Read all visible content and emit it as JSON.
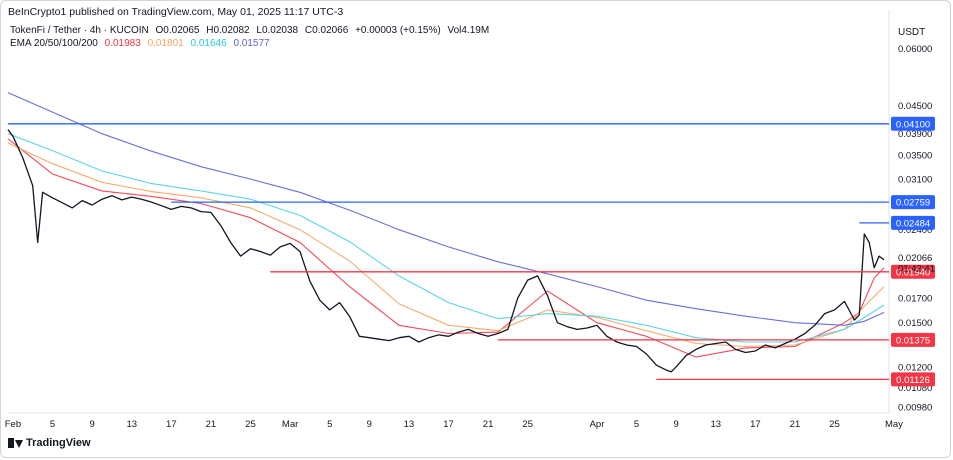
{
  "header": {
    "publisher": "BeInCrypto1 published on TradingView.com, May 01, 2025 11:17 UTC-3"
  },
  "symbol_info": {
    "pair": "TokenFi / Tether · 4h · KUCOIN",
    "open": "O0.02065",
    "high": "H0.02082",
    "low": "L0.02038",
    "close": "C0.02066",
    "change": "+0.00003 (+0.15%)",
    "volume": "Vol4.19M"
  },
  "ema_legend": {
    "label": "EMA 20/50/100/200",
    "values": [
      "0.01983",
      "0.01801",
      "0.01646",
      "0.01577"
    ],
    "colors": [
      "#f23645",
      "#f7a35c",
      "#4dd0e1",
      "#5c5fd6"
    ]
  },
  "currency": "USDT",
  "footer": {
    "brand": "TradingView"
  },
  "chart_data": {
    "type": "candlestick",
    "title": "TokenFi / Tether · 4h · KUCOIN",
    "y_scale": "log",
    "ylim": [
      0.0095,
      0.062
    ],
    "y_ticks": [
      "0.06000",
      "0.04500",
      "0.03900",
      "0.03500",
      "0.03100",
      "0.02400",
      "0.01700",
      "0.01500",
      "0.01200",
      "0.01080",
      "0.00980"
    ],
    "x_ticks": [
      "Feb",
      "5",
      "9",
      "13",
      "17",
      "21",
      "25",
      "Mar",
      "5",
      "9",
      "13",
      "17",
      "21",
      "25",
      "Apr",
      "5",
      "9",
      "13",
      "17",
      "21",
      "25",
      "May"
    ],
    "x_tick_days": [
      1,
      5,
      9,
      13,
      17,
      21,
      25,
      29,
      33,
      37,
      41,
      45,
      49,
      53,
      60,
      64,
      68,
      72,
      76,
      80,
      84,
      90
    ],
    "x_range_days": [
      0.5,
      89.5
    ],
    "price_series": {
      "name": "TokenFi / Tether",
      "x_days": [
        0.5,
        1,
        2,
        3,
        3.5,
        4,
        5,
        6,
        7,
        8,
        9,
        10,
        11,
        12,
        13,
        14,
        15,
        16,
        17,
        18,
        19,
        20,
        21,
        22,
        23,
        24,
        25,
        26,
        27,
        28,
        29,
        30,
        31,
        32,
        33,
        34,
        35,
        36,
        37,
        38,
        39,
        40,
        41,
        42,
        43,
        44,
        45,
        46,
        47,
        48,
        49,
        50,
        51,
        52,
        53,
        54,
        55,
        56,
        57,
        58,
        59,
        60,
        61,
        62,
        63,
        64,
        65,
        66,
        67,
        67.5,
        68,
        69,
        70,
        71,
        72,
        73,
        74,
        75,
        76,
        77,
        78,
        79,
        80,
        81,
        82,
        83,
        84,
        85,
        86,
        86.5,
        87,
        87.5,
        88,
        88.5,
        89
      ],
      "close": [
        0.0398,
        0.0385,
        0.0345,
        0.03,
        0.0225,
        0.029,
        0.0282,
        0.0275,
        0.0268,
        0.0278,
        0.0272,
        0.028,
        0.0285,
        0.0279,
        0.0283,
        0.028,
        0.0276,
        0.0271,
        0.0266,
        0.027,
        0.0268,
        0.0263,
        0.0262,
        0.0245,
        0.0225,
        0.021,
        0.0218,
        0.0215,
        0.0211,
        0.022,
        0.0224,
        0.0215,
        0.0185,
        0.0168,
        0.016,
        0.0166,
        0.0155,
        0.014,
        0.0139,
        0.0138,
        0.0137,
        0.0139,
        0.014,
        0.0136,
        0.0139,
        0.0141,
        0.014,
        0.0143,
        0.0145,
        0.0142,
        0.014,
        0.0142,
        0.0145,
        0.017,
        0.0186,
        0.019,
        0.0172,
        0.015,
        0.0147,
        0.0145,
        0.0146,
        0.0148,
        0.014,
        0.0136,
        0.0134,
        0.0133,
        0.0128,
        0.0121,
        0.0118,
        0.0117,
        0.012,
        0.0127,
        0.0131,
        0.0134,
        0.0135,
        0.0136,
        0.0131,
        0.0129,
        0.013,
        0.0134,
        0.0132,
        0.0135,
        0.0138,
        0.0142,
        0.0148,
        0.0157,
        0.016,
        0.0167,
        0.0152,
        0.0156,
        0.0235,
        0.0225,
        0.0198,
        0.021,
        0.0206
      ]
    },
    "ema_series": [
      {
        "name": "EMA 20",
        "color": "#f23645",
        "x_days": [
          0.5,
          5,
          10,
          15,
          20,
          25,
          30,
          35,
          40,
          45,
          50,
          55,
          60,
          65,
          70,
          75,
          80,
          85,
          86.5,
          88,
          89
        ],
        "values": [
          0.038,
          0.0318,
          0.0292,
          0.0284,
          0.0274,
          0.0255,
          0.0225,
          0.018,
          0.0148,
          0.0142,
          0.0143,
          0.0176,
          0.015,
          0.014,
          0.0126,
          0.0132,
          0.0133,
          0.015,
          0.0158,
          0.0188,
          0.0198
        ]
      },
      {
        "name": "EMA 50",
        "color": "#f7a35c",
        "x_days": [
          0.5,
          5,
          10,
          15,
          20,
          25,
          30,
          35,
          40,
          45,
          50,
          55,
          60,
          65,
          70,
          75,
          80,
          85,
          87,
          89
        ],
        "values": [
          0.0372,
          0.0335,
          0.0305,
          0.0291,
          0.0282,
          0.0268,
          0.024,
          0.0205,
          0.0165,
          0.0148,
          0.0144,
          0.016,
          0.0154,
          0.0144,
          0.0135,
          0.0133,
          0.0134,
          0.0145,
          0.0163,
          0.018
        ]
      },
      {
        "name": "EMA 100",
        "color": "#4dd0e1",
        "x_days": [
          0.5,
          5,
          10,
          15,
          20,
          25,
          30,
          35,
          40,
          45,
          50,
          55,
          60,
          65,
          70,
          75,
          80,
          85,
          87,
          89
        ],
        "values": [
          0.039,
          0.0358,
          0.0323,
          0.0303,
          0.0292,
          0.028,
          0.0258,
          0.0226,
          0.019,
          0.0166,
          0.0153,
          0.0157,
          0.0155,
          0.0148,
          0.0139,
          0.0136,
          0.0136,
          0.0145,
          0.0154,
          0.0164
        ]
      },
      {
        "name": "EMA 200",
        "color": "#5c5fd6",
        "x_days": [
          0.5,
          5,
          10,
          15,
          20,
          25,
          30,
          35,
          40,
          45,
          50,
          55,
          60,
          65,
          70,
          75,
          80,
          85,
          87,
          89
        ],
        "values": [
          0.048,
          0.0435,
          0.039,
          0.0357,
          0.033,
          0.031,
          0.029,
          0.0265,
          0.024,
          0.022,
          0.0204,
          0.0192,
          0.018,
          0.0168,
          0.0161,
          0.0155,
          0.015,
          0.0148,
          0.0151,
          0.0158
        ]
      }
    ],
    "horizontal_levels": [
      {
        "label": "0.04100",
        "value": 0.041,
        "color": "#2962ff",
        "start_day": 0.5
      },
      {
        "label": "0.02759",
        "value": 0.02759,
        "color": "#2962ff",
        "start_day": 17
      },
      {
        "label": "0.02484",
        "value": 0.02484,
        "color": "#2962ff",
        "start_day": 86.5
      },
      {
        "label": "0.01940",
        "value": 0.0194,
        "color": "#f23645",
        "start_day": 27
      },
      {
        "label": "0.01375",
        "value": 0.01375,
        "color": "#f23645",
        "start_day": 50
      },
      {
        "label": "0.01126",
        "value": 0.01126,
        "color": "#f23645",
        "start_day": 66
      }
    ],
    "price_labels": [
      {
        "label": "0.02066",
        "value": 0.02066
      },
      {
        "label": "01:42:41",
        "value": 0.02
      }
    ]
  }
}
